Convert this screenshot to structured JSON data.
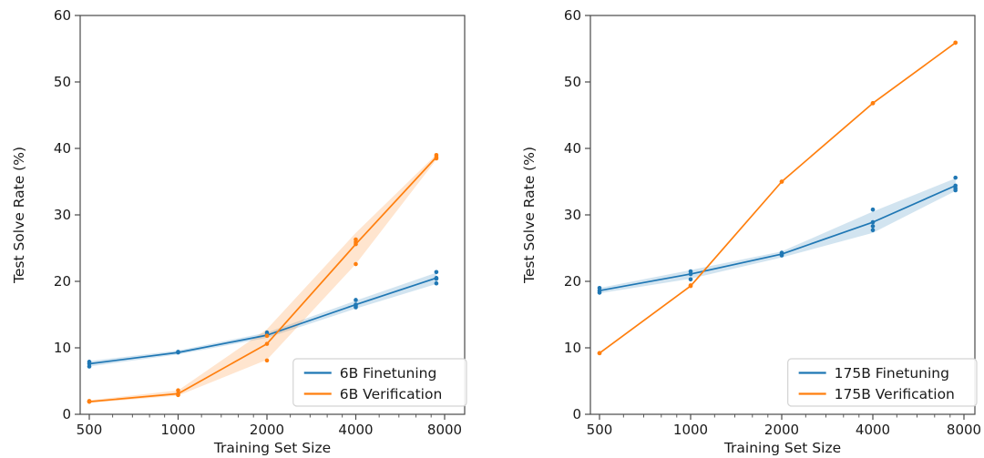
{
  "figure": {
    "background": "#ffffff",
    "xlabel": "Training Set Size",
    "ylabel": "Test Solve Rate (%)"
  },
  "colors": {
    "finetuning_blue": "#1f77b4",
    "verification_orange": "#ff7f0e",
    "band_opacity": 0.2,
    "spine_gray": "#4a4a4a",
    "text_dark": "#1a1a1a",
    "legend_border": "#d3d3d3"
  },
  "chart_data": [
    {
      "type": "line",
      "panel": "left",
      "xlabel": "Training Set Size",
      "ylabel": "Test Solve Rate (%)",
      "xscale": "log2",
      "ylim": [
        0,
        60
      ],
      "yticks": [
        0,
        10,
        20,
        30,
        40,
        50,
        60
      ],
      "xticks": [
        500,
        1000,
        2000,
        4000,
        8000
      ],
      "xticks_minor": [
        600,
        700,
        800,
        900,
        1200,
        1400,
        1600,
        1800,
        2400,
        2800,
        3200,
        3600,
        4800,
        5600,
        6400,
        7200
      ],
      "grid": false,
      "legend_position": "lower right",
      "x": [
        500,
        1000,
        2000,
        4000,
        7500
      ],
      "series": [
        {
          "name": "6B Finetuning",
          "color": "#1f77b4",
          "values": [
            7.6,
            9.3,
            11.9,
            16.5,
            20.5
          ],
          "band_lo": [
            7.2,
            9.0,
            11.5,
            15.9,
            19.6
          ],
          "band_hi": [
            8.0,
            9.6,
            12.3,
            17.1,
            21.3
          ],
          "scatter": [
            [
              500,
              7.9
            ],
            [
              500,
              7.2
            ],
            [
              1000,
              9.4
            ],
            [
              2000,
              12.3
            ],
            [
              4000,
              17.2
            ],
            [
              4000,
              16.3
            ],
            [
              4000,
              16.1
            ],
            [
              7500,
              21.4
            ],
            [
              7500,
              20.4
            ],
            [
              7500,
              19.7
            ]
          ]
        },
        {
          "name": "6B Verification",
          "color": "#ff7f0e",
          "values": [
            1.9,
            3.1,
            10.6,
            25.6,
            38.7
          ],
          "band_lo": [
            1.7,
            2.8,
            8.2,
            22.6,
            38.3
          ],
          "band_hi": [
            2.1,
            3.6,
            12.8,
            27.3,
            39.1
          ],
          "scatter": [
            [
              500,
              2.0
            ],
            [
              500,
              1.9
            ],
            [
              1000,
              3.6
            ],
            [
              1000,
              2.9
            ],
            [
              2000,
              11.8
            ],
            [
              2000,
              8.1
            ],
            [
              4000,
              26.3
            ],
            [
              4000,
              25.9
            ],
            [
              4000,
              22.6
            ],
            [
              7500,
              39.0
            ],
            [
              7500,
              38.5
            ]
          ]
        }
      ]
    },
    {
      "type": "line",
      "panel": "right",
      "xlabel": "Training Set Size",
      "ylabel": "Test Solve Rate (%)",
      "xscale": "log2",
      "ylim": [
        0,
        60
      ],
      "yticks": [
        0,
        10,
        20,
        30,
        40,
        50,
        60
      ],
      "xticks": [
        500,
        1000,
        2000,
        4000,
        8000
      ],
      "xticks_minor": [
        600,
        700,
        800,
        900,
        1200,
        1400,
        1600,
        1800,
        2400,
        2800,
        3200,
        3600,
        4800,
        5600,
        6400,
        7200
      ],
      "grid": false,
      "legend_position": "lower right",
      "x": [
        500,
        1000,
        2000,
        4000,
        7500
      ],
      "series": [
        {
          "name": "175B Finetuning",
          "color": "#1f77b4",
          "values": [
            18.6,
            21.1,
            24.1,
            28.9,
            34.4
          ],
          "band_lo": [
            18.2,
            20.4,
            23.6,
            27.3,
            33.6
          ],
          "band_hi": [
            19.0,
            21.7,
            24.5,
            30.5,
            35.5
          ],
          "scatter": [
            [
              500,
              19.0
            ],
            [
              500,
              18.3
            ],
            [
              1000,
              21.5
            ],
            [
              1000,
              20.3
            ],
            [
              2000,
              24.3
            ],
            [
              2000,
              23.9
            ],
            [
              4000,
              30.8
            ],
            [
              4000,
              28.3
            ],
            [
              4000,
              27.7
            ],
            [
              7500,
              35.6
            ],
            [
              7500,
              34.0
            ],
            [
              7500,
              33.7
            ]
          ]
        },
        {
          "name": "175B Verification",
          "color": "#ff7f0e",
          "values": [
            9.2,
            19.3,
            35.0,
            46.8,
            55.9
          ],
          "band_lo": [
            9.2,
            19.3,
            35.0,
            46.8,
            55.9
          ],
          "band_hi": [
            9.2,
            19.3,
            35.0,
            46.8,
            55.9
          ],
          "scatter": [
            [
              500,
              9.2
            ],
            [
              1000,
              19.4
            ],
            [
              2000,
              35.0
            ],
            [
              4000,
              46.8
            ],
            [
              7500,
              55.9
            ]
          ]
        }
      ]
    }
  ]
}
